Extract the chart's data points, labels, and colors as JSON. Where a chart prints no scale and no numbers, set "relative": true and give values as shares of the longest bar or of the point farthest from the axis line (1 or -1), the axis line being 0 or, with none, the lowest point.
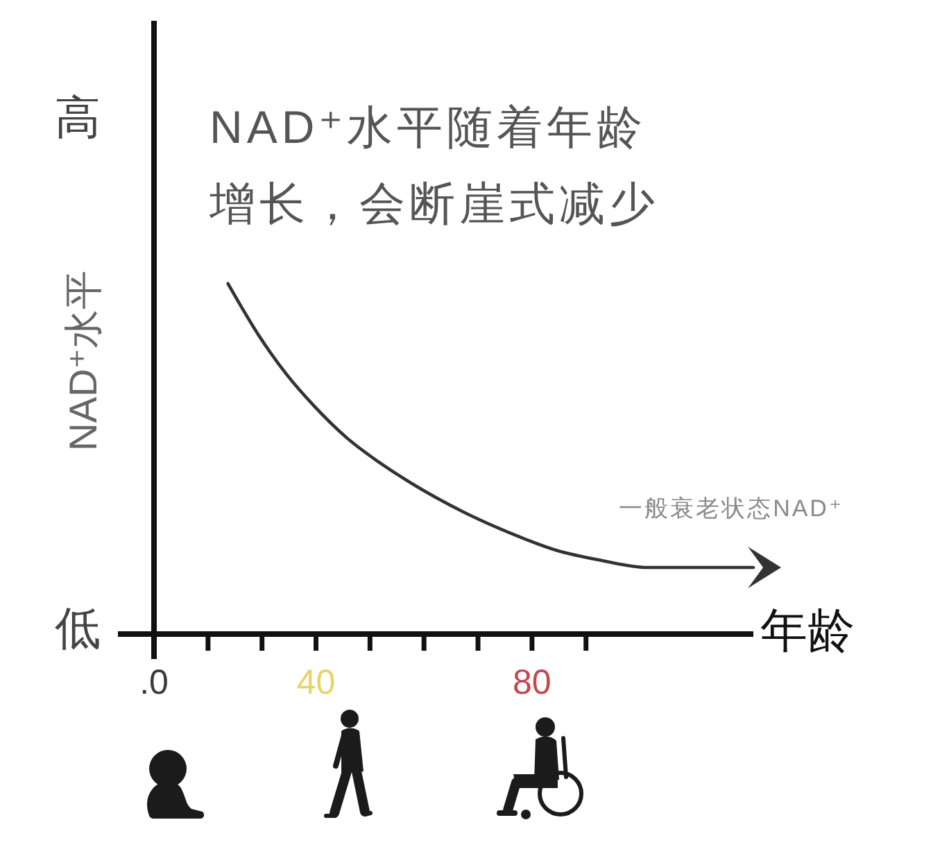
{
  "chart_data": {
    "type": "line",
    "title": "NAD⁺水平随着年龄增长，会断崖式减少",
    "xlabel": "年龄",
    "ylabel": "NAD⁺水平",
    "relative": true,
    "x": [
      23.7,
      29.5,
      34.6,
      39.7,
      45.7,
      51.7,
      57.7,
      67.1,
      75.7,
      84.3,
      92.9,
      101.4,
      110,
      121
    ],
    "values": [
      1,
      0.85,
      0.74,
      0.65,
      0.56,
      0.49,
      0.43,
      0.35,
      0.29,
      0.24,
      0.21,
      0.19,
      0.19,
      0.19
    ],
    "color": "#333333",
    "line_style": "solid",
    "xlim": [
      10,
      121
    ],
    "xticks": [
      {
        "value": 10,
        "label": null
      },
      {
        "value": 20,
        "label": null
      },
      {
        "value": 30,
        "label": null
      },
      40,
      {
        "value": 50,
        "label": null
      },
      {
        "value": 60,
        "label": null
      },
      {
        "value": 70,
        "label": null
      },
      80,
      {
        "value": 90,
        "label": null
      }
    ],
    "annotations": [
      "高",
      "低",
      ".0",
      {
        "text": "一般衰老状态NAD⁺",
        "x": 121,
        "y": 0.19
      }
    ]
  }
}
